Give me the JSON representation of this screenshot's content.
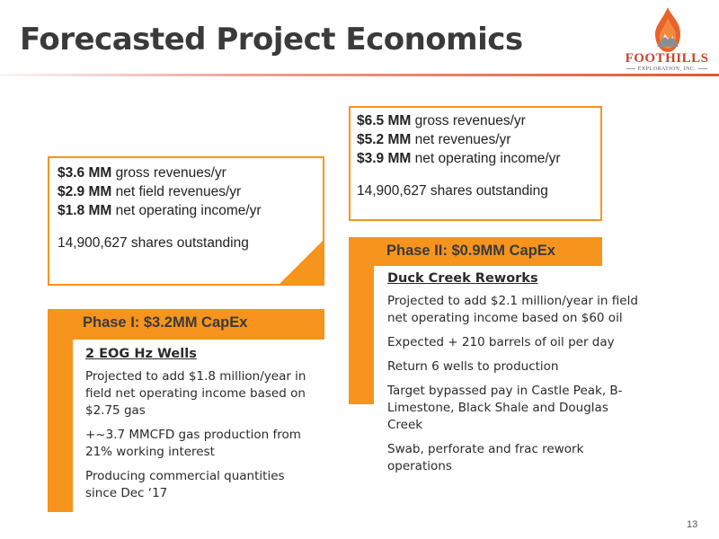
{
  "slide": {
    "title": "Forecasted Project Economics",
    "page_number": "13"
  },
  "logo": {
    "name": "FOOTHILLS",
    "subtitle": "EXPLORATION, INC."
  },
  "phase1_stats": {
    "gross": {
      "value": "$3.6 MM",
      "text": " gross revenues/yr"
    },
    "net": {
      "value": "$2.9 MM",
      "text": " net field revenues/yr"
    },
    "noi": {
      "value": "$1.8 MM",
      "text": " net operating income/yr"
    },
    "shares": "14,900,627 shares outstanding"
  },
  "phase2_stats": {
    "gross": {
      "value": "$6.5 MM",
      "text": " gross revenues/yr"
    },
    "net": {
      "value": "$5.2 MM",
      "text": " net revenues/yr"
    },
    "noi": {
      "value": "$3.9 MM",
      "text": " net operating income/yr"
    },
    "shares": "14,900,627 shares outstanding"
  },
  "phase1": {
    "title": "Phase I:  $3.2MM CapEx",
    "subheading": "2 EOG Hz Wells",
    "items": [
      "Projected to add $1.8 million/year in field net operating income based on $2.75 gas",
      "+~3.7 MMCFD gas production from 21% working interest",
      "Producing commercial quantities since Dec ‘17"
    ]
  },
  "phase2": {
    "title": "Phase II:  $0.9MM CapEx",
    "subheading": "Duck Creek Reworks",
    "items": [
      "Projected to add $2.1 million/year in field net operating income based on $60 oil",
      "Expected + 210 barrels of oil per day",
      "Return 6 wells to production",
      "Target bypassed pay in Castle Peak, B-Limestone, Black Shale and Douglas Creek",
      "Swab, perforate and frac rework operations"
    ]
  },
  "colors": {
    "accent": "#f7941d",
    "logo_red": "#c8442a",
    "title_rule": "#e5562f",
    "title_text": "#3a3a3a"
  }
}
